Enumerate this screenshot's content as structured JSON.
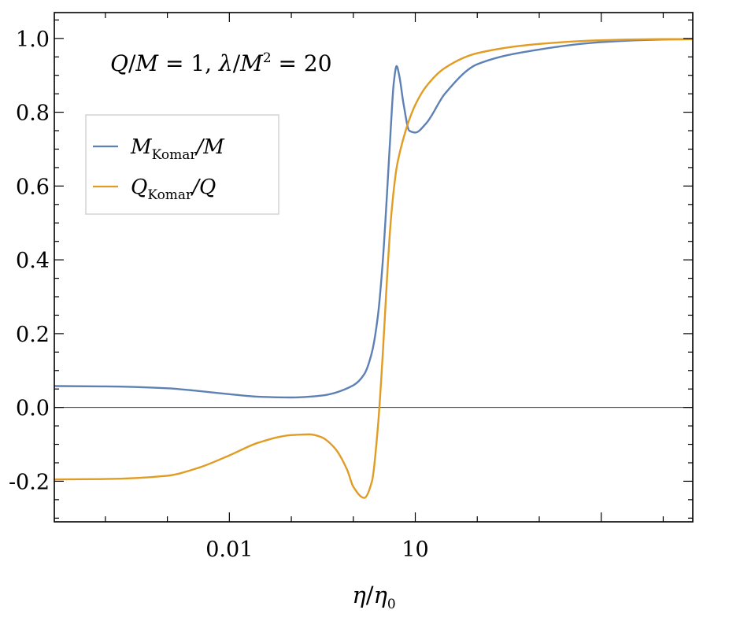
{
  "chart_data": {
    "type": "line",
    "x_scale": "log",
    "xlim": [
      1.5e-05,
      300000
    ],
    "ylim": [
      -0.31,
      1.07
    ],
    "grid": false,
    "legend_position": "top-left",
    "annotation": {
      "parts": [
        "Q",
        "/",
        "M",
        " = 1, ",
        "λ",
        "/",
        "M",
        "2",
        " = 20"
      ]
    },
    "xlabel": {
      "num": "η",
      "den": "η",
      "den_sub": "0"
    },
    "ylabel": "",
    "x_tick_labels": [
      {
        "value": 0.01,
        "label": "0.01"
      },
      {
        "value": 10,
        "label": "10"
      }
    ],
    "y_tick_labels": [
      {
        "value": 1.0,
        "label": "1.0"
      },
      {
        "value": 0.8,
        "label": "0.8"
      },
      {
        "value": 0.6,
        "label": "0.6"
      },
      {
        "value": 0.4,
        "label": "0.4"
      },
      {
        "value": 0.2,
        "label": "0.2"
      },
      {
        "value": 0.0,
        "label": "0.0"
      },
      {
        "value": -0.2,
        "label": "-0.2"
      }
    ],
    "series": [
      {
        "legend": {
          "main": "M",
          "sub": "Komar",
          "rest": "/M"
        },
        "color": "#5E81B5",
        "x": [
          1.5e-05,
          0.0001,
          0.001,
          0.003,
          0.01,
          0.03,
          0.1,
          0.3,
          1,
          1.5,
          2,
          2.5,
          3,
          3.5,
          4,
          4.5,
          5,
          5.5,
          6.5,
          8,
          10,
          15,
          30,
          100,
          1000,
          10000,
          100000,
          300000
        ],
        "values": [
          0.058,
          0.057,
          0.052,
          0.045,
          0.036,
          0.029,
          0.027,
          0.032,
          0.06,
          0.09,
          0.15,
          0.25,
          0.4,
          0.58,
          0.75,
          0.88,
          0.925,
          0.9,
          0.82,
          0.75,
          0.745,
          0.77,
          0.85,
          0.93,
          0.97,
          0.99,
          0.997,
          0.998
        ]
      },
      {
        "legend": {
          "main": "Q",
          "sub": "Komar",
          "rest": "/Q"
        },
        "color": "#E19C24",
        "x": [
          1.5e-05,
          0.0001,
          0.001,
          0.003,
          0.01,
          0.03,
          0.1,
          0.2,
          0.3,
          0.5,
          0.8,
          1,
          1.5,
          2,
          2.5,
          3,
          3.5,
          4,
          4.5,
          5,
          6,
          7,
          8,
          10,
          15,
          30,
          100,
          1000,
          10000,
          100000,
          300000
        ],
        "values": [
          -0.195,
          -0.194,
          -0.185,
          -0.165,
          -0.13,
          -0.095,
          -0.075,
          -0.073,
          -0.08,
          -0.11,
          -0.17,
          -0.215,
          -0.245,
          -0.2,
          -0.05,
          0.15,
          0.35,
          0.5,
          0.59,
          0.65,
          0.71,
          0.75,
          0.78,
          0.82,
          0.87,
          0.92,
          0.96,
          0.985,
          0.995,
          0.998,
          0.998
        ]
      }
    ]
  }
}
